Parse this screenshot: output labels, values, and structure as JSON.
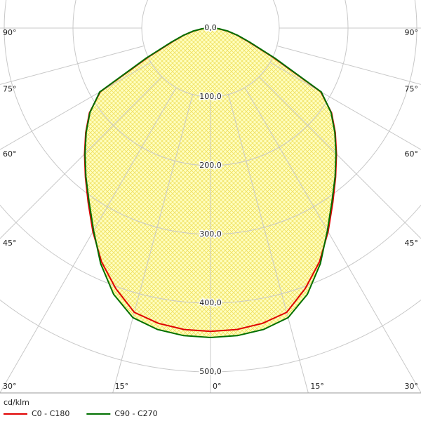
{
  "chart_data": {
    "type": "polar",
    "unit": "cd/klm",
    "angles": [
      -90,
      -85,
      -80,
      -75,
      -70,
      -65,
      -60,
      -55,
      -50,
      -45,
      -40,
      -35,
      -30,
      -25,
      -20,
      -15,
      -10,
      -5,
      0,
      5,
      10,
      15,
      20,
      25,
      30,
      35,
      40,
      45,
      50,
      55,
      60,
      65,
      70,
      75,
      80,
      85,
      90
    ],
    "series": [
      {
        "name": "C0 - C180",
        "color": "#e00000",
        "values": [
          5,
          12,
          25,
          40,
          60,
          100,
          185,
          215,
          237,
          259,
          283,
          310,
          342,
          375,
          403,
          428,
          436,
          440,
          441,
          440,
          436,
          428,
          403,
          375,
          342,
          310,
          283,
          259,
          237,
          215,
          185,
          100,
          60,
          40,
          25,
          12,
          5
        ]
      },
      {
        "name": "C90 - C270",
        "color": "#007000",
        "values": [
          5,
          13,
          26,
          41,
          62,
          103,
          186,
          214,
          236,
          258,
          282,
          308,
          340,
          378,
          412,
          436,
          445,
          449,
          450,
          449,
          445,
          436,
          412,
          378,
          340,
          308,
          282,
          258,
          236,
          214,
          186,
          103,
          62,
          41,
          26,
          13,
          5
        ]
      }
    ],
    "rlim": [
      0,
      500
    ],
    "rticks": [
      {
        "value": 0,
        "label": "0,0"
      },
      {
        "value": 100,
        "label": "100,0"
      },
      {
        "value": 200,
        "label": "200,0"
      },
      {
        "value": 300,
        "label": "300,0"
      },
      {
        "value": 400,
        "label": "400,0"
      },
      {
        "value": 500,
        "label": "500,0"
      }
    ],
    "angle_ticks": [
      {
        "value": -90,
        "label": "90°"
      },
      {
        "value": -75,
        "label": "75°"
      },
      {
        "value": -60,
        "label": "60°"
      },
      {
        "value": -45,
        "label": "45°"
      },
      {
        "value": -30,
        "label": "30°"
      },
      {
        "value": -15,
        "label": "15°"
      },
      {
        "value": 0,
        "label": "0°"
      },
      {
        "value": 15,
        "label": "15°"
      },
      {
        "value": 30,
        "label": "30°"
      },
      {
        "value": 45,
        "label": "45°"
      },
      {
        "value": 60,
        "label": "60°"
      },
      {
        "value": 75,
        "label": "75°"
      },
      {
        "value": 90,
        "label": "90°"
      }
    ]
  }
}
